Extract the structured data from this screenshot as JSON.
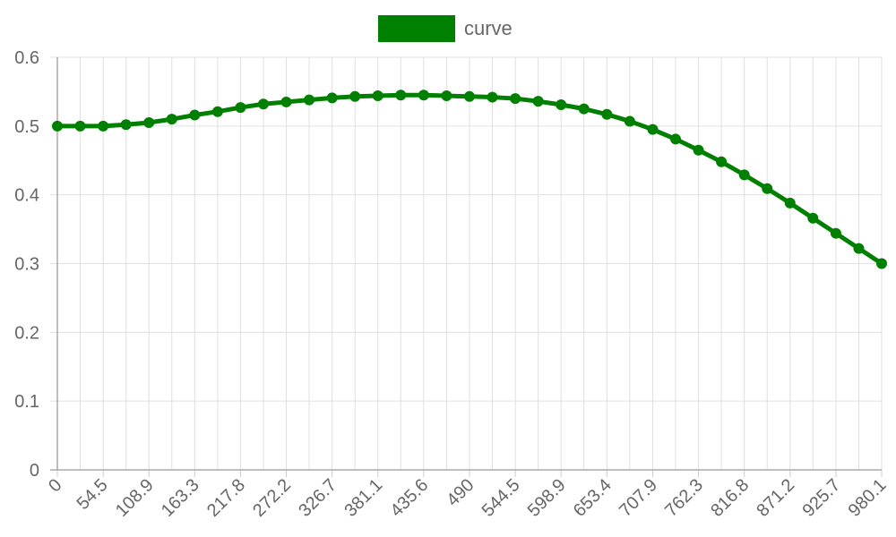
{
  "chart_data": {
    "type": "line",
    "xlabel": "",
    "ylabel": "",
    "ylim": [
      0,
      0.6
    ],
    "y_ticks": [
      "0",
      "0.1",
      "0.2",
      "0.3",
      "0.4",
      "0.5",
      "0.6"
    ],
    "x_tick_labels": [
      "0",
      "54.5",
      "108.9",
      "163.3",
      "217.8",
      "272.2",
      "326.7",
      "381.1",
      "435.6",
      "490",
      "544.5",
      "598.9",
      "653.4",
      "707.9",
      "762.3",
      "816.8",
      "871.2",
      "925.7",
      "980.1"
    ],
    "grid": true,
    "legend_position": "top-center",
    "series": [
      {
        "name": "curve",
        "color": "#008000",
        "x": [
          0,
          27.2,
          54.5,
          81.7,
          108.9,
          136.1,
          163.3,
          190.6,
          217.8,
          245,
          272.2,
          299.4,
          326.7,
          353.9,
          381.1,
          408.3,
          435.6,
          462.8,
          490,
          517.2,
          544.5,
          571.7,
          598.9,
          626.1,
          653.4,
          680.6,
          707.9,
          735.1,
          762.3,
          789.5,
          816.8,
          844,
          871.2,
          898.4,
          925.7,
          952.9,
          980.1
        ],
        "values": [
          0.5,
          0.5,
          0.5,
          0.502,
          0.505,
          0.51,
          0.516,
          0.521,
          0.527,
          0.532,
          0.535,
          0.538,
          0.541,
          0.543,
          0.544,
          0.545,
          0.545,
          0.544,
          0.543,
          0.542,
          0.54,
          0.536,
          0.531,
          0.525,
          0.517,
          0.507,
          0.495,
          0.481,
          0.465,
          0.448,
          0.429,
          0.409,
          0.388,
          0.366,
          0.344,
          0.322,
          0.3
        ]
      }
    ]
  }
}
